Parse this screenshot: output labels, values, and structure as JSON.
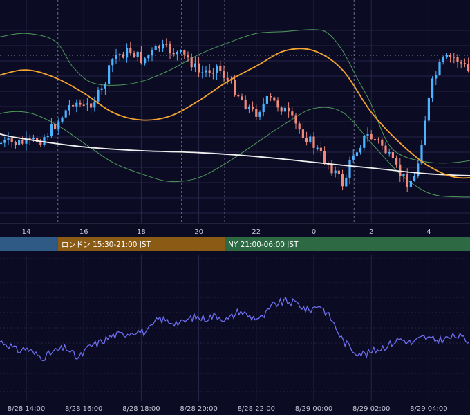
{
  "chart_data": [
    {
      "type": "candlestick",
      "title": "",
      "indicators": [
        "moving-average-long",
        "moving-average-short",
        "bollinger-bands"
      ],
      "grid": true,
      "x_ticks": [
        "14",
        "16",
        "18",
        "20",
        "22",
        "0",
        "2",
        "4"
      ],
      "price_path": [
        [
          0.0,
          0.4
        ],
        [
          0.5,
          0.42
        ],
        [
          1.0,
          0.5
        ],
        [
          1.6,
          0.62
        ],
        [
          2.0,
          0.58
        ],
        [
          2.6,
          0.67
        ],
        [
          3.0,
          0.85
        ],
        [
          3.6,
          0.88
        ],
        [
          4.0,
          0.83
        ],
        [
          4.6,
          0.9
        ],
        [
          5.0,
          0.88
        ],
        [
          5.6,
          0.84
        ],
        [
          6.0,
          0.76
        ],
        [
          6.6,
          0.8
        ],
        [
          7.0,
          0.72
        ],
        [
          7.5,
          0.62
        ],
        [
          7.9,
          0.55
        ],
        [
          8.4,
          0.63
        ],
        [
          8.9,
          0.58
        ],
        [
          9.4,
          0.48
        ],
        [
          9.9,
          0.4
        ],
        [
          10.3,
          0.32
        ],
        [
          10.7,
          0.25
        ],
        [
          11.0,
          0.18
        ],
        [
          11.3,
          0.34
        ],
        [
          11.8,
          0.44
        ],
        [
          12.3,
          0.4
        ],
        [
          12.6,
          0.32
        ],
        [
          12.9,
          0.25
        ],
        [
          13.2,
          0.2
        ],
        [
          13.5,
          0.22
        ],
        [
          13.8,
          0.5
        ],
        [
          14.1,
          0.72
        ],
        [
          14.4,
          0.82
        ],
        [
          14.8,
          0.85
        ],
        [
          15.2,
          0.8
        ],
        [
          15.6,
          0.72
        ],
        [
          16.0,
          0.8
        ],
        [
          16.4,
          0.83
        ],
        [
          16.8,
          0.76
        ],
        [
          17.3,
          0.75
        ],
        [
          17.8,
          0.8
        ],
        [
          18.2,
          0.84
        ],
        [
          18.7,
          0.82
        ],
        [
          19.2,
          0.62
        ],
        [
          19.7,
          0.68
        ],
        [
          20.2,
          0.73
        ],
        [
          20.8,
          0.66
        ],
        [
          21.2,
          0.62
        ],
        [
          21.7,
          0.72
        ],
        [
          22.3,
          0.66
        ],
        [
          22.8,
          0.7
        ],
        [
          23.3,
          0.72
        ],
        [
          23.8,
          0.78
        ],
        [
          24.2,
          0.84
        ],
        [
          24.6,
          0.92
        ],
        [
          25.0,
          0.86
        ],
        [
          25.4,
          0.88
        ],
        [
          26.0,
          0.85
        ]
      ],
      "long_ma_path": [
        [
          -6.0,
          0.66
        ],
        [
          -5.0,
          0.64
        ],
        [
          -4.0,
          0.6
        ],
        [
          -3.0,
          0.55
        ],
        [
          -2.0,
          0.5
        ],
        [
          -1.0,
          0.45
        ],
        [
          0.0,
          0.42
        ],
        [
          2.0,
          0.38
        ],
        [
          4.0,
          0.36
        ],
        [
          6.0,
          0.35
        ],
        [
          8.0,
          0.33
        ],
        [
          10.0,
          0.3
        ],
        [
          12.0,
          0.27
        ],
        [
          14.0,
          0.24
        ],
        [
          16.0,
          0.23
        ],
        [
          18.0,
          0.24
        ],
        [
          20.0,
          0.26
        ],
        [
          22.0,
          0.3
        ],
        [
          24.0,
          0.34
        ],
        [
          26.0,
          0.38
        ]
      ],
      "short_ma_path": [
        [
          -6.0,
          0.52
        ],
        [
          -5.0,
          0.54
        ],
        [
          -4.0,
          0.58
        ],
        [
          -3.0,
          0.64
        ],
        [
          -2.0,
          0.7
        ],
        [
          -1.0,
          0.75
        ],
        [
          0.0,
          0.78
        ],
        [
          1.0,
          0.74
        ],
        [
          2.0,
          0.66
        ],
        [
          3.0,
          0.56
        ],
        [
          4.0,
          0.52
        ],
        [
          5.0,
          0.54
        ],
        [
          6.0,
          0.62
        ],
        [
          7.0,
          0.72
        ],
        [
          8.0,
          0.8
        ],
        [
          9.0,
          0.88
        ],
        [
          10.0,
          0.88
        ],
        [
          11.0,
          0.78
        ],
        [
          12.0,
          0.56
        ],
        [
          13.0,
          0.4
        ],
        [
          14.0,
          0.28
        ],
        [
          15.0,
          0.22
        ],
        [
          16.0,
          0.24
        ],
        [
          17.0,
          0.32
        ],
        [
          18.0,
          0.4
        ],
        [
          19.0,
          0.46
        ],
        [
          20.0,
          0.5
        ],
        [
          21.0,
          0.5
        ],
        [
          22.0,
          0.48
        ],
        [
          23.0,
          0.5
        ],
        [
          24.0,
          0.56
        ],
        [
          25.0,
          0.62
        ],
        [
          26.0,
          0.66
        ]
      ],
      "bb_upper_path": [
        [
          -6.0,
          0.8
        ],
        [
          -5.0,
          0.78
        ],
        [
          -4.0,
          0.8
        ],
        [
          -3.0,
          0.86
        ],
        [
          -2.0,
          0.92
        ],
        [
          -1.0,
          0.95
        ],
        [
          0.0,
          0.97
        ],
        [
          1.0,
          0.93
        ],
        [
          1.6,
          0.8
        ],
        [
          2.2,
          0.72
        ],
        [
          3.0,
          0.7
        ],
        [
          4.0,
          0.72
        ],
        [
          5.0,
          0.78
        ],
        [
          6.0,
          0.86
        ],
        [
          7.0,
          0.92
        ],
        [
          8.0,
          0.97
        ],
        [
          9.0,
          0.98
        ],
        [
          10.0,
          0.99
        ],
        [
          10.5,
          0.97
        ],
        [
          11.0,
          0.88
        ],
        [
          11.5,
          0.74
        ],
        [
          12.0,
          0.6
        ],
        [
          12.5,
          0.42
        ],
        [
          13.0,
          0.34
        ],
        [
          14.0,
          0.3
        ],
        [
          15.0,
          0.3
        ],
        [
          16.0,
          0.33
        ],
        [
          17.0,
          0.4
        ],
        [
          18.0,
          0.5
        ],
        [
          19.0,
          0.62
        ],
        [
          20.0,
          0.66
        ],
        [
          21.0,
          0.7
        ],
        [
          22.0,
          0.72
        ],
        [
          22.4,
          0.8
        ],
        [
          22.8,
          0.84
        ],
        [
          23.2,
          0.8
        ],
        [
          23.6,
          0.68
        ],
        [
          24.0,
          0.6
        ],
        [
          24.5,
          0.66
        ],
        [
          25.2,
          0.82
        ],
        [
          26.0,
          0.84
        ]
      ],
      "bb_lower_path": [
        [
          -6.0,
          0.16
        ],
        [
          -5.0,
          0.18
        ],
        [
          -4.0,
          0.26
        ],
        [
          -3.0,
          0.36
        ],
        [
          -2.0,
          0.48
        ],
        [
          -1.0,
          0.55
        ],
        [
          0.0,
          0.56
        ],
        [
          1.0,
          0.5
        ],
        [
          2.0,
          0.4
        ],
        [
          3.0,
          0.3
        ],
        [
          4.0,
          0.24
        ],
        [
          5.0,
          0.2
        ],
        [
          6.0,
          0.22
        ],
        [
          7.0,
          0.3
        ],
        [
          8.0,
          0.4
        ],
        [
          9.0,
          0.5
        ],
        [
          10.0,
          0.58
        ],
        [
          11.0,
          0.56
        ],
        [
          12.0,
          0.4
        ],
        [
          13.0,
          0.24
        ],
        [
          14.0,
          0.14
        ],
        [
          15.0,
          0.12
        ],
        [
          16.0,
          0.13
        ],
        [
          17.0,
          0.2
        ],
        [
          18.0,
          0.28
        ],
        [
          19.0,
          0.3
        ],
        [
          20.0,
          0.27
        ],
        [
          21.0,
          0.28
        ],
        [
          22.0,
          0.32
        ],
        [
          23.0,
          0.38
        ],
        [
          23.5,
          0.4
        ],
        [
          24.0,
          0.42
        ],
        [
          25.0,
          0.48
        ],
        [
          26.0,
          0.52
        ]
      ]
    },
    {
      "type": "line",
      "title": "",
      "grid": true,
      "x_ticks": [
        "8/28 14:00",
        "8/28 16:00",
        "8/28 18:00",
        "8/28 20:00",
        "8/28 22:00",
        "8/29 00:00",
        "8/29 02:00",
        "8/29 04:00"
      ],
      "path": [
        [
          -1.0,
          0.34
        ],
        [
          -0.6,
          0.28
        ],
        [
          -0.3,
          0.2
        ],
        [
          0.0,
          0.24
        ],
        [
          0.3,
          0.16
        ],
        [
          0.6,
          0.12
        ],
        [
          1.0,
          0.2
        ],
        [
          1.4,
          0.24
        ],
        [
          1.8,
          0.1
        ],
        [
          2.2,
          0.26
        ],
        [
          2.6,
          0.32
        ],
        [
          3.0,
          0.4
        ],
        [
          3.4,
          0.42
        ],
        [
          3.8,
          0.46
        ],
        [
          4.2,
          0.44
        ],
        [
          4.6,
          0.62
        ],
        [
          5.0,
          0.58
        ],
        [
          5.4,
          0.56
        ],
        [
          5.8,
          0.64
        ],
        [
          6.2,
          0.62
        ],
        [
          6.6,
          0.66
        ],
        [
          7.0,
          0.6
        ],
        [
          7.4,
          0.72
        ],
        [
          7.8,
          0.64
        ],
        [
          8.2,
          0.62
        ],
        [
          8.6,
          0.8
        ],
        [
          9.0,
          0.84
        ],
        [
          9.4,
          0.82
        ],
        [
          9.8,
          0.72
        ],
        [
          10.2,
          0.8
        ],
        [
          10.6,
          0.62
        ],
        [
          11.0,
          0.34
        ],
        [
          11.4,
          0.2
        ],
        [
          11.8,
          0.16
        ],
        [
          12.2,
          0.22
        ],
        [
          12.6,
          0.28
        ],
        [
          13.0,
          0.36
        ],
        [
          13.4,
          0.3
        ],
        [
          13.8,
          0.38
        ],
        [
          14.2,
          0.34
        ],
        [
          14.6,
          0.36
        ],
        [
          15.0,
          0.4
        ],
        [
          15.4,
          0.32
        ],
        [
          15.8,
          0.38
        ],
        [
          16.2,
          0.42
        ],
        [
          16.6,
          0.4
        ],
        [
          17.0,
          0.44
        ],
        [
          17.4,
          0.46
        ],
        [
          17.8,
          0.42
        ],
        [
          18.2,
          0.48
        ],
        [
          18.6,
          0.44
        ],
        [
          19.0,
          0.46
        ],
        [
          19.4,
          0.5
        ],
        [
          19.8,
          0.42
        ],
        [
          20.2,
          0.5
        ],
        [
          20.6,
          0.54
        ],
        [
          21.0,
          0.56
        ],
        [
          21.4,
          0.58
        ],
        [
          21.8,
          0.62
        ],
        [
          22.2,
          0.7
        ],
        [
          22.6,
          0.74
        ],
        [
          23.0,
          0.72
        ],
        [
          23.4,
          0.8
        ],
        [
          23.8,
          0.84
        ],
        [
          24.2,
          0.76
        ],
        [
          24.6,
          0.74
        ],
        [
          25.0,
          0.8
        ],
        [
          25.4,
          0.82
        ],
        [
          26.0,
          0.84
        ]
      ]
    }
  ],
  "sessions": [
    {
      "label": "",
      "color": "#2f5a86",
      "start": -7.0,
      "end": 1.1
    },
    {
      "label": "ロンドン 15:30-21:00 JST",
      "color": "#8b5a14",
      "start": 1.1,
      "end": 6.9
    },
    {
      "label": "NY 21:00-06:00 JST",
      "color": "#2d6a44",
      "start": 6.9,
      "end": 26.0
    }
  ],
  "colors": {
    "background": "#0b0b24",
    "grid": "#262648",
    "grid_dash": "#3a3a62",
    "up_candle": "#4db3ff",
    "down_candle": "#ef8a7b",
    "long_ma": "#f0f0f0",
    "short_ma": "#f5a331",
    "bollinger": "#4f9a5a",
    "oscillator": "#6f6ff2",
    "dotted_level": "#8888a0",
    "session_divider": "#6b6b90"
  }
}
